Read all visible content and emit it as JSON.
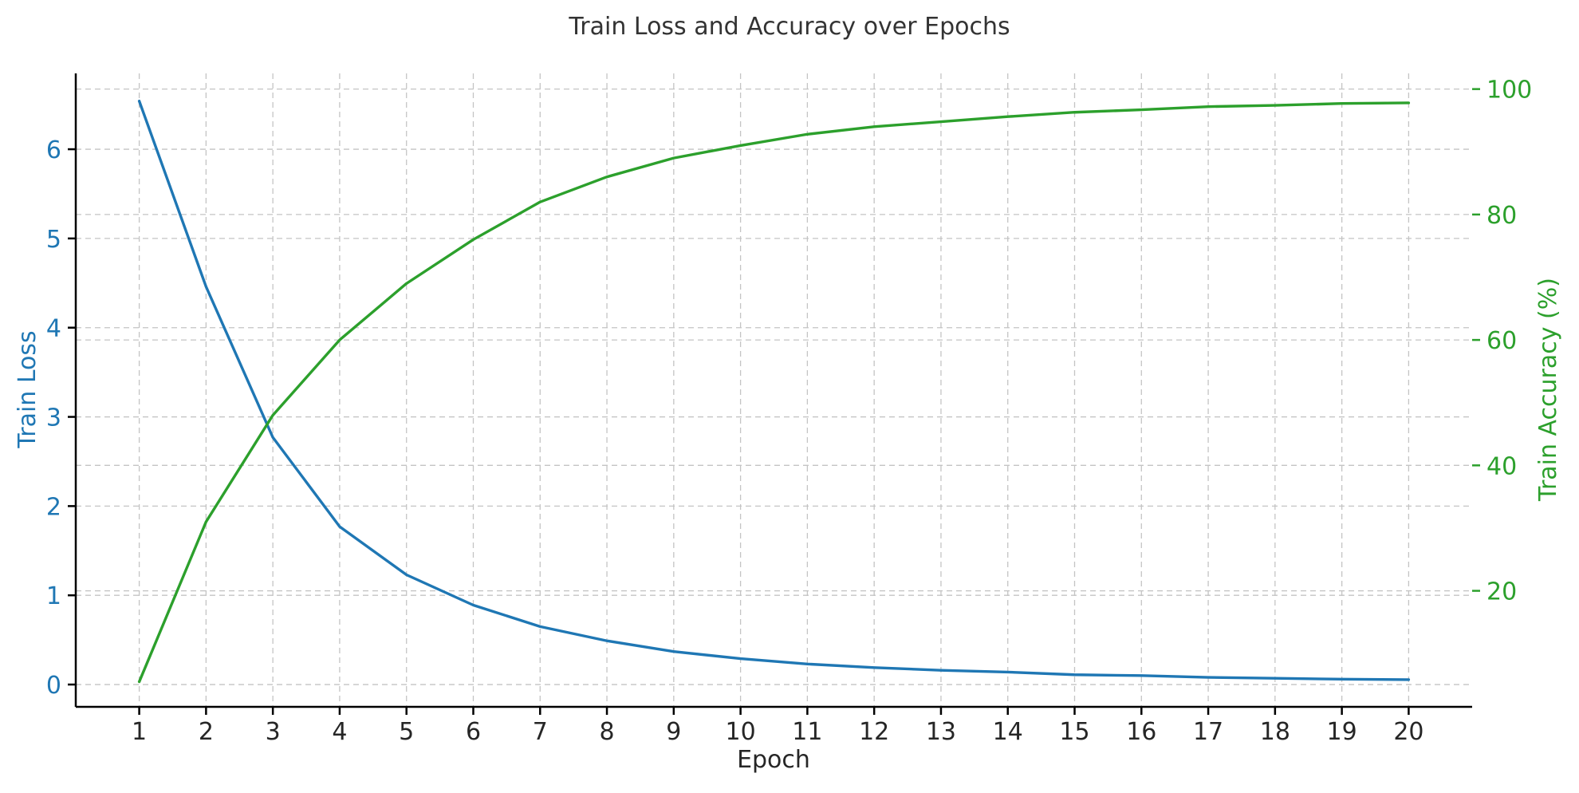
{
  "chart_data": {
    "type": "line",
    "title": "Train Loss and Accuracy over Epochs",
    "xlabel": "Epoch",
    "x": [
      1,
      2,
      3,
      4,
      5,
      6,
      7,
      8,
      9,
      10,
      11,
      12,
      13,
      14,
      15,
      16,
      17,
      18,
      19,
      20
    ],
    "xtick_labels": [
      "1",
      "2",
      "3",
      "4",
      "5",
      "6",
      "7",
      "8",
      "9",
      "10",
      "11",
      "12",
      "13",
      "14",
      "15",
      "16",
      "17",
      "18",
      "19",
      "20"
    ],
    "xlim": [
      0.05,
      20.95
    ],
    "y_left": {
      "label": "Train Loss",
      "color": "#1f77b4",
      "lim": [
        -0.25,
        6.85
      ],
      "ticks": [
        0,
        1,
        2,
        3,
        4,
        5,
        6
      ],
      "tick_labels": [
        "0",
        "1",
        "2",
        "3",
        "4",
        "5",
        "6"
      ]
    },
    "y_right": {
      "label": "Train Accuracy (%)",
      "color": "#2ca02c",
      "lim": [
        1.5,
        102.5
      ],
      "ticks": [
        20,
        40,
        60,
        80,
        100
      ],
      "tick_labels": [
        "20",
        "40",
        "60",
        "80",
        "100"
      ]
    },
    "series": [
      {
        "axis": "left",
        "color": "#1f77b4",
        "values": [
          6.54,
          4.46,
          2.77,
          1.77,
          1.23,
          0.89,
          0.65,
          0.49,
          0.37,
          0.29,
          0.23,
          0.19,
          0.16,
          0.14,
          0.11,
          0.1,
          0.08,
          0.07,
          0.06,
          0.055
        ]
      },
      {
        "axis": "right",
        "color": "#2ca02c",
        "values": [
          5.5,
          31,
          48,
          60,
          69,
          76,
          82,
          86,
          89,
          91,
          92.8,
          94,
          94.8,
          95.6,
          96.3,
          96.7,
          97.2,
          97.4,
          97.7,
          97.8
        ]
      }
    ],
    "grid": true
  }
}
